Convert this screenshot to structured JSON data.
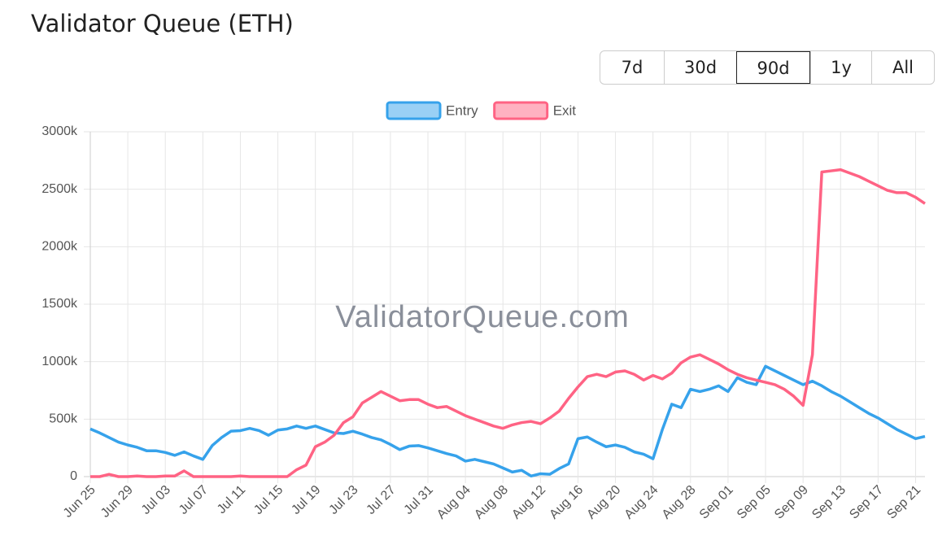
{
  "header": {
    "title": "Validator Queue (ETH)",
    "ranges": [
      "7d",
      "30d",
      "90d",
      "1y",
      "All"
    ],
    "active_range": "90d"
  },
  "watermark": "ValidatorQueue.com",
  "chart_data": {
    "type": "line",
    "categories": [
      "Jun 25",
      null,
      null,
      null,
      "Jun 29",
      null,
      null,
      null,
      "Jul 03",
      null,
      null,
      null,
      "Jul 07",
      null,
      null,
      null,
      "Jul 11",
      null,
      null,
      null,
      "Jul 15",
      null,
      null,
      null,
      "Jul 19",
      null,
      null,
      null,
      "Jul 23",
      null,
      null,
      null,
      "Jul 27",
      null,
      null,
      null,
      "Jul 31",
      null,
      null,
      null,
      "Aug 04",
      null,
      null,
      null,
      "Aug 08",
      null,
      null,
      null,
      "Aug 12",
      null,
      null,
      null,
      "Aug 16",
      null,
      null,
      null,
      "Aug 20",
      null,
      null,
      null,
      "Aug 24",
      null,
      null,
      null,
      "Aug 28",
      null,
      null,
      null,
      "Sep 01",
      null,
      null,
      null,
      "Sep 05",
      null,
      null,
      null,
      "Sep 09",
      null,
      null,
      null,
      "Sep 13",
      null,
      null,
      null,
      "Sep 17",
      null,
      null,
      null,
      "Sep 21",
      null
    ],
    "series": [
      {
        "name": "Entry",
        "color": "#36a2eb",
        "values": [
          415,
          380,
          340,
          300,
          275,
          255,
          225,
          225,
          210,
          185,
          215,
          180,
          150,
          270,
          340,
          395,
          400,
          420,
          400,
          360,
          405,
          415,
          440,
          420,
          440,
          410,
          380,
          375,
          395,
          370,
          340,
          320,
          280,
          235,
          265,
          270,
          250,
          225,
          200,
          180,
          135,
          150,
          130,
          110,
          75,
          40,
          55,
          5,
          25,
          20,
          70,
          110,
          330,
          345,
          300,
          260,
          275,
          255,
          215,
          195,
          155,
          410,
          630,
          600,
          760,
          740,
          760,
          790,
          740,
          860,
          820,
          800,
          960,
          920,
          880,
          840,
          800,
          830,
          790,
          740,
          700,
          650,
          600,
          550,
          510,
          460,
          410,
          370,
          330,
          350
        ]
      },
      {
        "name": "Exit",
        "color": "#ff6384",
        "values": [
          0,
          0,
          20,
          0,
          0,
          5,
          0,
          0,
          5,
          5,
          50,
          0,
          0,
          0,
          0,
          0,
          5,
          0,
          0,
          0,
          0,
          0,
          60,
          100,
          260,
          300,
          360,
          470,
          520,
          640,
          690,
          740,
          700,
          660,
          670,
          670,
          630,
          600,
          610,
          570,
          530,
          500,
          470,
          440,
          420,
          450,
          470,
          480,
          460,
          510,
          570,
          680,
          780,
          870,
          890,
          870,
          910,
          920,
          890,
          840,
          880,
          850,
          900,
          990,
          1040,
          1060,
          1020,
          980,
          930,
          890,
          860,
          840,
          820,
          800,
          760,
          700,
          620,
          1060,
          2650,
          2660,
          2670,
          2640,
          2610,
          2570,
          2530,
          2490,
          2470,
          2470,
          2430,
          2375
        ]
      }
    ],
    "ylim": [
      0,
      3000
    ],
    "yticks": [
      0,
      {
        "value": 500,
        "label": "500k"
      },
      {
        "value": 1000,
        "label": "1000k"
      },
      {
        "value": 1500,
        "label": "1500k"
      },
      {
        "value": 2000,
        "label": "2000k"
      },
      {
        "value": 2500,
        "label": "2500k"
      },
      {
        "value": 3000,
        "label": "3000k"
      }
    ],
    "grid": true,
    "legend": "top"
  }
}
